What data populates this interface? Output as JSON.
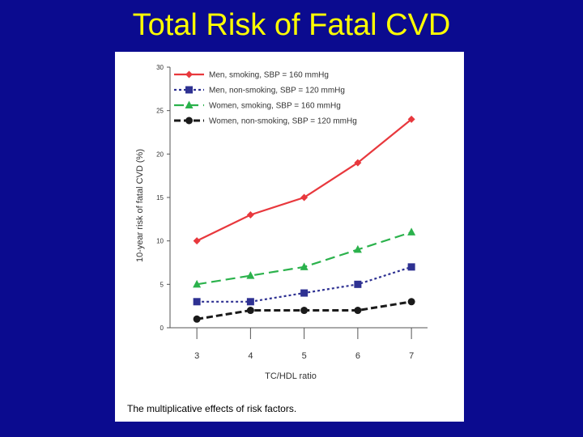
{
  "slide": {
    "title": "Total Risk of Fatal CVD",
    "background_color": "#0b0b8f",
    "title_color": "#ffff00"
  },
  "figure": {
    "caption": "The multiplicative effects of risk factors."
  },
  "chart_data": {
    "type": "line",
    "title": "",
    "xlabel": "TC/HDL ratio",
    "ylabel": "10-year risk of fatal CVD (%)",
    "x": [
      3,
      4,
      5,
      6,
      7
    ],
    "xlim": [
      2.5,
      7.3
    ],
    "ylim": [
      0,
      30
    ],
    "yticks": [
      0,
      5,
      10,
      15,
      20,
      25,
      30
    ],
    "grid": false,
    "legend_position": "top-left",
    "series": [
      {
        "name": "Men, smoking, SBP = 160 mmHg",
        "values": [
          10,
          13,
          15,
          19,
          24
        ],
        "color": "#e8383d",
        "marker": "diamond",
        "dash": "solid"
      },
      {
        "name": "Men, non-smoking, SBP = 120 mmHg",
        "values": [
          3,
          3,
          4,
          5,
          7
        ],
        "color": "#2e3192",
        "marker": "square",
        "dash": "dotted"
      },
      {
        "name": "Women, smoking, SBP = 160 mmHg",
        "values": [
          5,
          6,
          7,
          9,
          11
        ],
        "color": "#2bb24c",
        "marker": "triangle",
        "dash": "dashed"
      },
      {
        "name": "Women, non-smoking, SBP = 120 mmHg",
        "values": [
          1,
          2,
          2,
          2,
          3
        ],
        "color": "#1a1a1a",
        "marker": "circle",
        "dash": "dashed-thick"
      }
    ]
  }
}
